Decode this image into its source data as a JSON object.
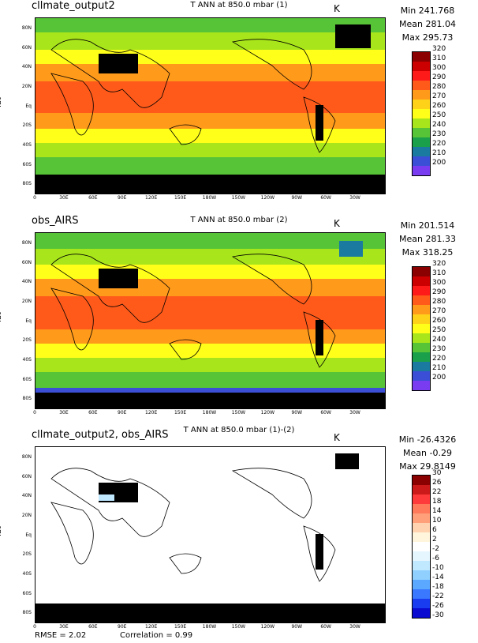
{
  "panels": [
    {
      "id": "p1",
      "left_title": "cllmate_output2",
      "center_title": "T ANN at 850.0 mbar (1)",
      "units": "K",
      "stats": {
        "min": "Min 241.768",
        "mean": "Mean 281.04",
        "max": "Max 295.73"
      },
      "ylabel": "lat",
      "colorbar": {
        "labels": [
          "320",
          "310",
          "300",
          "290",
          "280",
          "270",
          "260",
          "250",
          "240",
          "230",
          "220",
          "210",
          "200"
        ],
        "colors": [
          "#8b0000",
          "#cc0000",
          "#ff1a1a",
          "#ff5a1a",
          "#ff9a1a",
          "#ffd21a",
          "#ffff1a",
          "#a8e51a",
          "#57c437",
          "#1aa04a",
          "#1a7aa0",
          "#3b4fd6",
          "#7a3cf0"
        ]
      }
    },
    {
      "id": "p2",
      "left_title": "obs_AIRS",
      "center_title": "T ANN at 850.0 mbar (2)",
      "units": "K",
      "stats": {
        "min": "Min 201.514",
        "mean": "Mean 281.33",
        "max": "Max 318.25"
      },
      "ylabel": "lat",
      "colorbar": {
        "labels": [
          "320",
          "310",
          "300",
          "290",
          "280",
          "270",
          "260",
          "250",
          "240",
          "230",
          "220",
          "210",
          "200"
        ],
        "colors": [
          "#8b0000",
          "#cc0000",
          "#ff1a1a",
          "#ff5a1a",
          "#ff9a1a",
          "#ffd21a",
          "#ffff1a",
          "#a8e51a",
          "#57c437",
          "#1aa04a",
          "#1a7aa0",
          "#3b4fd6",
          "#7a3cf0"
        ]
      }
    },
    {
      "id": "p3",
      "left_title": "cllmate_output2, obs_AIRS",
      "center_title": "T ANN at 850.0 mbar (1)-(2)",
      "units": "K",
      "stats": {
        "min": "Min -26.4326",
        "mean": "Mean -0.29",
        "max": "Max 29.8149"
      },
      "ylabel": "lat",
      "colorbar": {
        "labels": [
          "30",
          "26",
          "22",
          "18",
          "14",
          "10",
          "6",
          "2",
          "-2",
          "-6",
          "-10",
          "-14",
          "-18",
          "-22",
          "-26",
          "-30"
        ],
        "colors": [
          "#8b0000",
          "#cc1a1a",
          "#ff3a3a",
          "#ff7a5a",
          "#ffa07a",
          "#ffd2b0",
          "#fff4dc",
          "#ffffff",
          "#e6f6ff",
          "#c0e8ff",
          "#90d0ff",
          "#5aa8ff",
          "#3a78ff",
          "#1a3cf0",
          "#0a0ad0"
        ]
      }
    }
  ],
  "lat_ticks": [
    "80N",
    "60N",
    "40N",
    "20N",
    "Eq",
    "20S",
    "40S",
    "60S",
    "80S"
  ],
  "lon_ticks": [
    "0",
    "30E",
    "60E",
    "90E",
    "120E",
    "150E",
    "180W",
    "150W",
    "120W",
    "90W",
    "60W",
    "30W"
  ],
  "footer": {
    "rmse": "RMSE = 2.02",
    "correlation": "Correlation = 0.99"
  }
}
